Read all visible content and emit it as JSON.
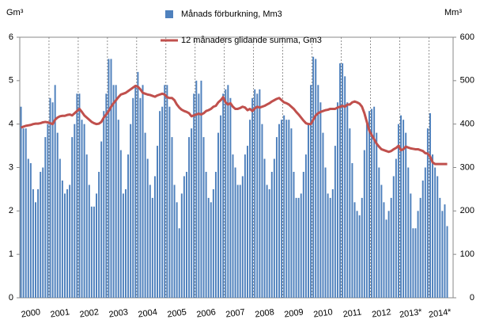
{
  "chart_data": {
    "type": "bar",
    "y_label": "Gm³",
    "y2_label": "Mm³",
    "ylim": [
      0,
      6
    ],
    "yticks": [
      0,
      1,
      2,
      3,
      4,
      5,
      6
    ],
    "y2lim": [
      0,
      600
    ],
    "y2ticks": [
      0,
      100,
      200,
      300,
      400,
      500,
      600
    ],
    "categories": [
      null,
      null,
      null,
      null,
      null,
      "2000",
      null,
      null,
      null,
      null,
      null,
      null,
      null,
      null,
      null,
      null,
      null,
      "2001",
      null,
      null,
      null,
      null,
      null,
      null,
      null,
      null,
      null,
      null,
      null,
      "2002",
      null,
      null,
      null,
      null,
      null,
      null,
      null,
      null,
      null,
      null,
      null,
      "2003",
      null,
      null,
      null,
      null,
      null,
      null,
      null,
      null,
      null,
      null,
      null,
      "2004",
      null,
      null,
      null,
      null,
      null,
      null,
      null,
      null,
      null,
      null,
      null,
      "2005",
      null,
      null,
      null,
      null,
      null,
      null,
      null,
      null,
      null,
      null,
      null,
      "2006",
      null,
      null,
      null,
      null,
      null,
      null,
      null,
      null,
      null,
      null,
      null,
      "2007",
      null,
      null,
      null,
      null,
      null,
      null,
      null,
      null,
      null,
      null,
      null,
      "2008",
      null,
      null,
      null,
      null,
      null,
      null,
      null,
      null,
      null,
      null,
      null,
      "2009",
      null,
      null,
      null,
      null,
      null,
      null,
      null,
      null,
      null,
      null,
      null,
      "2010",
      null,
      null,
      null,
      null,
      null,
      null,
      null,
      null,
      null,
      null,
      null,
      "2011",
      null,
      null,
      null,
      null,
      null,
      null,
      null,
      null,
      null,
      null,
      null,
      "2012",
      null,
      null,
      null,
      null,
      null,
      null,
      null,
      null,
      null,
      null,
      null,
      "2013*",
      null,
      null,
      null,
      null,
      null,
      null,
      null,
      null,
      null,
      null,
      null,
      "2014*",
      null,
      null
    ],
    "series": [
      {
        "name": "Månads förburkning, Mm3",
        "type": "bar",
        "axis": "y2",
        "color": "#4f81bd",
        "values": [
          440,
          390,
          390,
          320,
          310,
          250,
          220,
          250,
          290,
          300,
          370,
          400,
          460,
          450,
          490,
          380,
          320,
          270,
          240,
          250,
          260,
          370,
          400,
          470,
          470,
          410,
          400,
          330,
          260,
          210,
          210,
          240,
          290,
          360,
          430,
          470,
          550,
          550,
          490,
          490,
          410,
          340,
          240,
          250,
          330,
          400,
          460,
          490,
          520,
          460,
          490,
          380,
          320,
          260,
          230,
          280,
          350,
          430,
          440,
          490,
          490,
          440,
          370,
          260,
          220,
          160,
          240,
          280,
          290,
          370,
          390,
          470,
          500,
          470,
          500,
          370,
          290,
          230,
          220,
          250,
          290,
          380,
          420,
          470,
          480,
          490,
          460,
          330,
          300,
          260,
          260,
          280,
          330,
          350,
          410,
          460,
          480,
          470,
          480,
          400,
          320,
          260,
          250,
          290,
          320,
          370,
          400,
          410,
          420,
          410,
          410,
          390,
          290,
          230,
          230,
          240,
          290,
          330,
          400,
          490,
          555,
          550,
          490,
          450,
          380,
          300,
          240,
          230,
          250,
          350,
          450,
          540,
          540,
          510,
          450,
          390,
          310,
          220,
          200,
          190,
          230,
          340,
          400,
          430,
          435,
          440,
          380,
          300,
          260,
          220,
          180,
          200,
          230,
          280,
          320,
          400,
          420,
          410,
          380,
          300,
          240,
          160,
          160,
          200,
          230,
          270,
          300,
          390,
          425,
          330,
          300,
          280,
          230,
          200,
          215,
          165
        ]
      },
      {
        "name": "12 månaders glidande summa, Gm3",
        "type": "line",
        "color": "#c0504d",
        "values": [
          3.92,
          3.94,
          3.96,
          3.97,
          3.98,
          4.0,
          4.01,
          4.01,
          4.02,
          4.04,
          4.05,
          4.04,
          4.02,
          4.0,
          4.1,
          4.15,
          4.18,
          4.19,
          4.19,
          4.21,
          4.22,
          4.2,
          4.25,
          4.3,
          4.35,
          4.28,
          4.2,
          4.15,
          4.1,
          4.05,
          4.02,
          4.0,
          4.01,
          4.05,
          4.15,
          4.22,
          4.3,
          4.4,
          4.48,
          4.55,
          4.62,
          4.68,
          4.7,
          4.72,
          4.76,
          4.8,
          4.84,
          4.88,
          4.86,
          4.8,
          4.72,
          4.7,
          4.68,
          4.67,
          4.65,
          4.63,
          4.66,
          4.68,
          4.7,
          4.68,
          4.62,
          4.6,
          4.6,
          4.55,
          4.45,
          4.38,
          4.33,
          4.3,
          4.28,
          4.25,
          4.18,
          4.2,
          4.22,
          4.24,
          4.22,
          4.25,
          4.3,
          4.32,
          4.35,
          4.4,
          4.42,
          4.5,
          4.55,
          4.62,
          4.5,
          4.45,
          4.48,
          4.4,
          4.35,
          4.35,
          4.37,
          4.4,
          4.38,
          4.32,
          4.35,
          4.3,
          4.36,
          4.4,
          4.38,
          4.4,
          4.42,
          4.45,
          4.48,
          4.52,
          4.55,
          4.58,
          4.6,
          4.55,
          4.5,
          4.48,
          4.45,
          4.4,
          4.35,
          4.28,
          4.22,
          4.15,
          4.08,
          4.02,
          4.0,
          4.0,
          4.1,
          4.2,
          4.25,
          4.28,
          4.3,
          4.32,
          4.33,
          4.35,
          4.35,
          4.35,
          4.38,
          4.4,
          4.42,
          4.4,
          4.45,
          4.45,
          4.5,
          4.52,
          4.5,
          4.47,
          4.4,
          4.25,
          4.05,
          3.85,
          3.75,
          3.65,
          3.55,
          3.48,
          3.42,
          3.4,
          3.38,
          3.36,
          3.38,
          3.42,
          3.45,
          3.5,
          3.4,
          3.42,
          3.48,
          3.46,
          3.44,
          3.43,
          3.42,
          3.42,
          3.4,
          3.38,
          3.33,
          3.32,
          3.25,
          3.12,
          3.08,
          3.08,
          3.08,
          3.08,
          3.08,
          3.08
        ]
      }
    ]
  }
}
